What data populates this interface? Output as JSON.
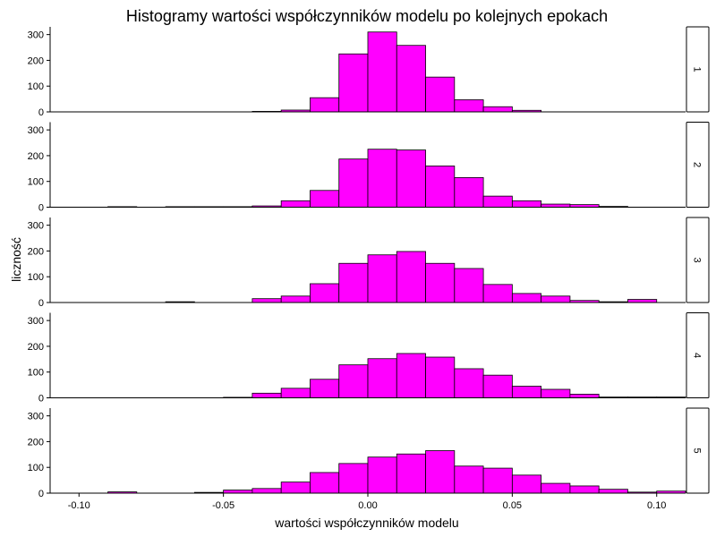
{
  "chart_data": {
    "type": "bar",
    "subtype": "faceted-histogram",
    "title": "Histogramy wartości współczynników modelu po kolejnych epokach",
    "xlabel": "wartości współczynników modelu",
    "ylabel": "liczność",
    "bin_width": 0.01,
    "xlim": [
      -0.11,
      0.11
    ],
    "ylim": [
      0,
      330
    ],
    "x_ticks": [
      -0.1,
      -0.05,
      0.0,
      0.05,
      0.1
    ],
    "x_tick_labels": [
      "-0.10",
      "-0.05",
      "0.00",
      "0.05",
      "0.10"
    ],
    "y_ticks": [
      0,
      100,
      200,
      300
    ],
    "y_tick_labels": [
      "0",
      "100",
      "200",
      "300"
    ],
    "bar_color": "#ff00ff",
    "bar_border": "#000000",
    "grid": false,
    "facet_strip_position": "right",
    "panels": [
      {
        "label": "1",
        "bins": [
          {
            "x0": -0.04,
            "count": 2
          },
          {
            "x0": -0.03,
            "count": 7
          },
          {
            "x0": -0.02,
            "count": 55
          },
          {
            "x0": -0.01,
            "count": 225
          },
          {
            "x0": 0.0,
            "count": 310
          },
          {
            "x0": 0.01,
            "count": 258
          },
          {
            "x0": 0.02,
            "count": 135
          },
          {
            "x0": 0.03,
            "count": 47
          },
          {
            "x0": 0.04,
            "count": 20
          },
          {
            "x0": 0.05,
            "count": 6
          }
        ]
      },
      {
        "label": "2",
        "bins": [
          {
            "x0": -0.09,
            "count": 2
          },
          {
            "x0": -0.07,
            "count": 2
          },
          {
            "x0": -0.06,
            "count": 2
          },
          {
            "x0": -0.05,
            "count": 2
          },
          {
            "x0": -0.04,
            "count": 5
          },
          {
            "x0": -0.03,
            "count": 25
          },
          {
            "x0": -0.02,
            "count": 65
          },
          {
            "x0": -0.01,
            "count": 187
          },
          {
            "x0": 0.0,
            "count": 225
          },
          {
            "x0": 0.01,
            "count": 222
          },
          {
            "x0": 0.02,
            "count": 160
          },
          {
            "x0": 0.03,
            "count": 115
          },
          {
            "x0": 0.04,
            "count": 43
          },
          {
            "x0": 0.05,
            "count": 25
          },
          {
            "x0": 0.06,
            "count": 12
          },
          {
            "x0": 0.07,
            "count": 10
          },
          {
            "x0": 0.08,
            "count": 3
          }
        ]
      },
      {
        "label": "3",
        "bins": [
          {
            "x0": -0.07,
            "count": 3
          },
          {
            "x0": -0.04,
            "count": 15
          },
          {
            "x0": -0.03,
            "count": 25
          },
          {
            "x0": -0.02,
            "count": 73
          },
          {
            "x0": -0.01,
            "count": 152
          },
          {
            "x0": 0.0,
            "count": 185
          },
          {
            "x0": 0.01,
            "count": 198
          },
          {
            "x0": 0.02,
            "count": 152
          },
          {
            "x0": 0.03,
            "count": 132
          },
          {
            "x0": 0.04,
            "count": 70
          },
          {
            "x0": 0.05,
            "count": 35
          },
          {
            "x0": 0.06,
            "count": 25
          },
          {
            "x0": 0.07,
            "count": 8
          },
          {
            "x0": 0.08,
            "count": 3
          },
          {
            "x0": 0.09,
            "count": 12
          }
        ]
      },
      {
        "label": "4",
        "bins": [
          {
            "x0": -0.05,
            "count": 2
          },
          {
            "x0": -0.04,
            "count": 18
          },
          {
            "x0": -0.03,
            "count": 37
          },
          {
            "x0": -0.02,
            "count": 72
          },
          {
            "x0": -0.01,
            "count": 128
          },
          {
            "x0": 0.0,
            "count": 152
          },
          {
            "x0": 0.01,
            "count": 172
          },
          {
            "x0": 0.02,
            "count": 158
          },
          {
            "x0": 0.03,
            "count": 113
          },
          {
            "x0": 0.04,
            "count": 88
          },
          {
            "x0": 0.05,
            "count": 45
          },
          {
            "x0": 0.06,
            "count": 33
          },
          {
            "x0": 0.07,
            "count": 14
          },
          {
            "x0": 0.08,
            "count": 3
          },
          {
            "x0": 0.09,
            "count": 3
          },
          {
            "x0": 0.1,
            "count": 3
          }
        ]
      },
      {
        "label": "5",
        "bins": [
          {
            "x0": -0.09,
            "count": 5
          },
          {
            "x0": -0.06,
            "count": 3
          },
          {
            "x0": -0.05,
            "count": 12
          },
          {
            "x0": -0.04,
            "count": 18
          },
          {
            "x0": -0.03,
            "count": 43
          },
          {
            "x0": -0.02,
            "count": 80
          },
          {
            "x0": -0.01,
            "count": 115
          },
          {
            "x0": 0.0,
            "count": 140
          },
          {
            "x0": 0.01,
            "count": 152
          },
          {
            "x0": 0.02,
            "count": 165
          },
          {
            "x0": 0.03,
            "count": 105
          },
          {
            "x0": 0.04,
            "count": 97
          },
          {
            "x0": 0.05,
            "count": 70
          },
          {
            "x0": 0.06,
            "count": 38
          },
          {
            "x0": 0.07,
            "count": 28
          },
          {
            "x0": 0.08,
            "count": 15
          },
          {
            "x0": 0.09,
            "count": 4
          },
          {
            "x0": 0.1,
            "count": 8
          }
        ]
      }
    ]
  }
}
